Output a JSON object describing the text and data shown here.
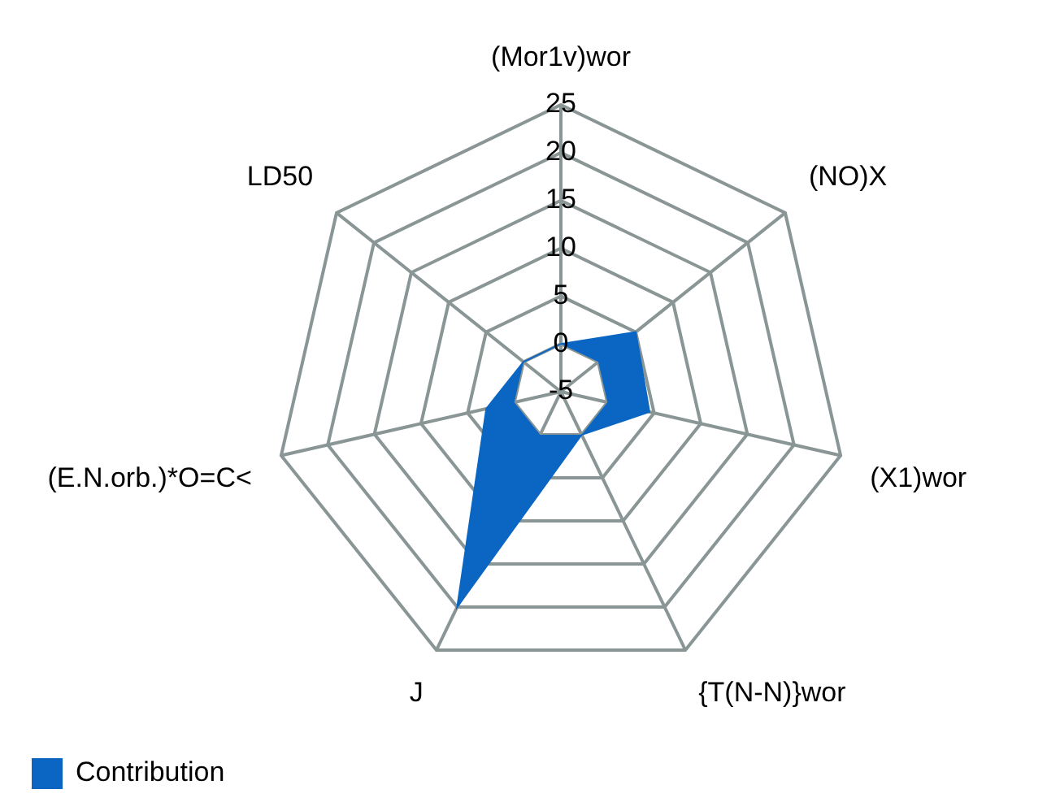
{
  "chart_data": {
    "type": "radar",
    "categories": [
      "(Mor1v)wor",
      "(NO)X",
      "(X1)wor",
      "{T(N-N)}wor",
      "J",
      "(E.N.orb.)*O=C<",
      "LD50"
    ],
    "series": [
      {
        "name": "Contribution",
        "color": "#0a66c2",
        "values": [
          0,
          5,
          4.5,
          0,
          20,
          3,
          0
        ]
      }
    ],
    "ylim": [
      -5,
      25
    ],
    "yticks": [
      -5,
      0,
      5,
      10,
      15,
      20,
      25
    ],
    "grid": true,
    "legend": "bottom left",
    "marker": "none"
  }
}
